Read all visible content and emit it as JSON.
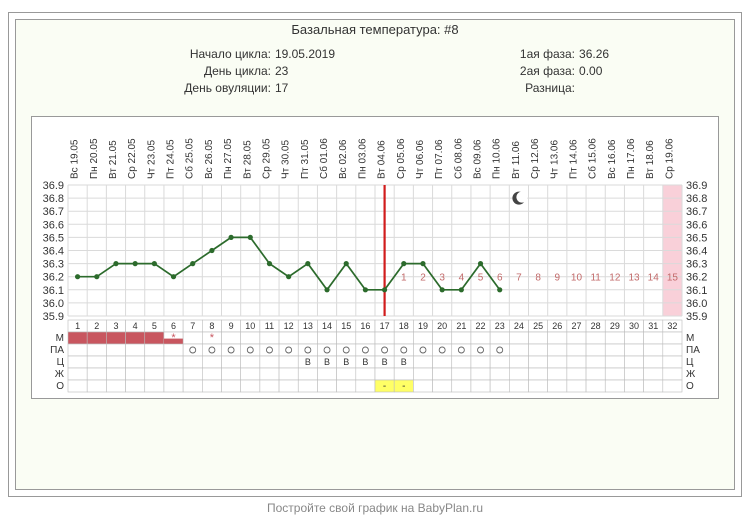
{
  "title": "Базальная температура: #8",
  "info_left": [
    {
      "k": "Начало цикла:",
      "v": "19.05.2019"
    },
    {
      "k": "День цикла:",
      "v": "23"
    },
    {
      "k": "День овуляции:",
      "v": "17"
    }
  ],
  "info_right": [
    {
      "k": "1ая фаза:",
      "v": "36.26"
    },
    {
      "k": "2ая фаза:",
      "v": "0.00"
    },
    {
      "k": "Разница:",
      "v": ""
    }
  ],
  "footer": "Постройте свой график на BabyPlan.ru",
  "chart": {
    "type": "line",
    "days": 32,
    "dates": [
      "Вс 19.05",
      "Пн 20.05",
      "Вт 21.05",
      "Ср 22.05",
      "Чт 23.05",
      "Пт 24.05",
      "Сб 25.05",
      "Вс 26.05",
      "Пн 27.05",
      "Вт 28.05",
      "Ср 29.05",
      "Чт 30.05",
      "Пт 31.05",
      "Сб 01.06",
      "Вс 02.06",
      "Пн 03.06",
      "Вт 04.06",
      "Ср 05.06",
      "Чт 06.06",
      "Пт 07.06",
      "Сб 08.06",
      "Вс 09.06",
      "Пн 10.06",
      "Вт 11.06",
      "Ср 12.06",
      "Чт 13.06",
      "Пт 14.06",
      "Сб 15.06",
      "Вс 16.06",
      "Пн 17.06",
      "Вт 18.06",
      "Ср 19.06"
    ],
    "ylim": [
      35.9,
      36.9
    ],
    "yticks": [
      35.9,
      36.0,
      36.1,
      36.2,
      36.3,
      36.4,
      36.5,
      36.6,
      36.7,
      36.8,
      36.9
    ],
    "values": [
      36.2,
      36.2,
      36.3,
      36.3,
      36.3,
      36.2,
      36.3,
      36.4,
      36.5,
      36.5,
      36.3,
      36.2,
      36.3,
      36.1,
      36.3,
      36.1,
      36.1,
      36.3,
      36.3,
      36.1,
      36.1,
      36.3,
      36.1,
      null,
      null,
      null,
      null,
      null,
      null,
      null,
      null,
      null
    ],
    "phase2_days": [
      1,
      2,
      3,
      4,
      5,
      6,
      7,
      8,
      9,
      10,
      11,
      12,
      13,
      14,
      15
    ],
    "phase2_color": "#c26a6a",
    "line_color": "#2c6b2c",
    "marker_color": "#2c6b2c",
    "grid_color": "#dadada",
    "bg": "#ffffff",
    "highlight_last_col": "#f9d0d9",
    "ovulation_day": 17,
    "ovulation_line_color": "#d11c1c",
    "menses_days": [
      1,
      2,
      3,
      4,
      5
    ],
    "menses_color": "#c8565f",
    "partial_menses": [
      6
    ],
    "stars": [
      6,
      8
    ],
    "star_color": "#c8565f",
    "pa_circles": [
      7,
      8,
      9,
      10,
      11,
      12,
      13,
      14,
      15,
      16,
      17,
      18,
      19,
      20,
      21,
      22,
      23
    ],
    "cervix": {
      "13": "B",
      "14": "B",
      "15": "B",
      "16": "B",
      "17": "B",
      "18": "B"
    },
    "cervix_bg": "#fff",
    "yellow_cells": {
      "row": "о",
      "days": [
        17,
        18
      ]
    },
    "yellow_color": "#ffff66",
    "moon_day": 24,
    "moon_y": 36.8,
    "row_labels": [
      "М",
      "ПА",
      "Ц",
      "Ж",
      "О"
    ]
  }
}
